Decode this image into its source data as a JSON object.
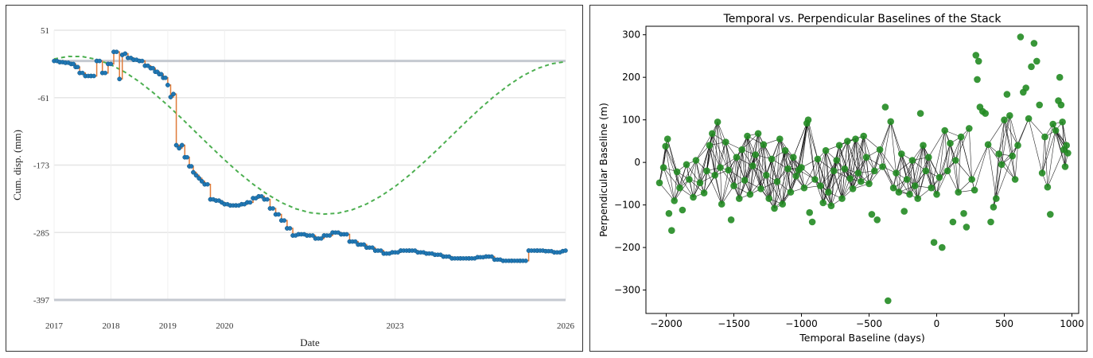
{
  "chart_data": [
    {
      "type": "line",
      "xlabel": "Date",
      "ylabel": "Cum. disp. (mm)",
      "ylim": [
        -397,
        51
      ],
      "yticks": [
        51,
        -61,
        -173,
        -285,
        -397
      ],
      "xticks": [
        {
          "label": "2017",
          "value": 2017.0
        },
        {
          "label": "2018",
          "value": 2018.0
        },
        {
          "label": "2019",
          "value": 2019.0
        },
        {
          "label": "2020",
          "value": 2020.0
        },
        {
          "label": "2023",
          "value": 2023.0
        },
        {
          "label": "2026",
          "value": 2026.0
        }
      ],
      "xlim": [
        2017.0,
        2026.0
      ],
      "reference_line": 0,
      "grid": true,
      "series": [
        {
          "color": "#1f77b4",
          "line_color": "#e07b39",
          "style": "line-with-markers",
          "x": [
            2017.0,
            2017.1,
            2017.2,
            2017.3,
            2017.38,
            2017.45,
            2017.55,
            2017.65,
            2017.75,
            2017.85,
            2017.95,
            2018.05,
            2018.15,
            2018.2,
            2018.25,
            2018.3,
            2018.4,
            2018.5,
            2018.6,
            2018.7,
            2018.78,
            2018.85,
            2018.92,
            2019.0,
            2019.05,
            2019.1,
            2019.15,
            2019.2,
            2019.25,
            2019.3,
            2019.38,
            2019.45,
            2019.5,
            2019.55,
            2019.6,
            2019.65,
            2019.75,
            2019.85,
            2019.95,
            2020.0,
            2020.1,
            2020.2,
            2020.3,
            2020.4,
            2020.5,
            2020.6,
            2020.7,
            2020.8,
            2020.9,
            2021.0,
            2021.1,
            2021.2,
            2021.3,
            2021.45,
            2021.6,
            2021.75,
            2021.9,
            2022.05,
            2022.2,
            2022.35,
            2022.5,
            2022.65,
            2022.8,
            2022.95,
            2023.1,
            2023.25,
            2023.4,
            2023.55,
            2023.7,
            2023.85,
            2024.0,
            2024.15,
            2024.3,
            2024.45,
            2024.6,
            2024.75,
            2024.9,
            2025.05,
            2025.2,
            2025.35,
            2025.5,
            2025.65,
            2025.8,
            2025.95,
            2026.0
          ],
          "y": [
            0,
            -2,
            -3,
            -5,
            -10,
            -20,
            -25,
            -25,
            0,
            -20,
            -5,
            15,
            -30,
            10,
            12,
            5,
            2,
            0,
            -8,
            -12,
            -18,
            -22,
            -28,
            -40,
            -60,
            -55,
            -140,
            -145,
            -140,
            -160,
            -175,
            -185,
            -190,
            -195,
            -200,
            -205,
            -230,
            -232,
            -235,
            -238,
            -240,
            -240,
            -238,
            -235,
            -228,
            -225,
            -230,
            -245,
            -255,
            -265,
            -278,
            -290,
            -288,
            -290,
            -295,
            -290,
            -285,
            -288,
            -300,
            -305,
            -310,
            -315,
            -320,
            -318,
            -315,
            -315,
            -318,
            -320,
            -322,
            -325,
            -328,
            -328,
            -328,
            -326,
            -325,
            -330,
            -332,
            -332,
            -332,
            -315,
            -315,
            -316,
            -318,
            -316,
            -315
          ]
        },
        {
          "color": "#4caf50",
          "style": "dashed",
          "fit": "sine",
          "x": [
            2017.0,
            2017.25,
            2017.5,
            2017.75,
            2018.0,
            2018.25,
            2018.5,
            2018.75,
            2019.0,
            2019.25,
            2019.5,
            2019.75,
            2020.0,
            2020.25,
            2020.5,
            2020.75,
            2021.0,
            2021.25,
            2021.5,
            2021.75,
            2022.0,
            2022.25,
            2022.5,
            2022.75,
            2023.0,
            2023.25,
            2023.5,
            2023.75,
            2024.0,
            2024.25,
            2024.5,
            2024.75,
            2025.0,
            2025.25,
            2025.5,
            2025.75,
            2026.0
          ],
          "y": [
            3.3,
            7.5,
            7.3,
            2.5,
            -6.3,
            -18.8,
            -34.6,
            -53.1,
            -73.8,
            -96.0,
            -118.9,
            -141.9,
            -164.3,
            -185.5,
            -204.7,
            -221.5,
            -235.2,
            -245.5,
            -252.0,
            -254.4,
            -252.8,
            -247.1,
            -237.6,
            -224.6,
            -208.5,
            -189.8,
            -168.9,
            -146.7,
            -123.8,
            -100.9,
            -78.8,
            -58.3,
            -40.0,
            -24.6,
            -12.7,
            -4.8,
            -1.2
          ]
        }
      ]
    },
    {
      "type": "scatter",
      "title": "Temporal vs. Perpendicular Baselines of the Stack",
      "xlabel": "Temporal Baseline (days)",
      "ylabel": "Perpendicular Baseline (m)",
      "xlim": [
        -2150,
        1050
      ],
      "ylim": [
        -355,
        320
      ],
      "xticks": [
        -2000,
        -1500,
        -1000,
        -500,
        0,
        500,
        1000
      ],
      "yticks": [
        -300,
        -200,
        -100,
        0,
        100,
        200,
        300
      ],
      "xtick_labels": [
        "−2000",
        "−1500",
        "−1000",
        "−500",
        "0",
        "500",
        "1000"
      ],
      "ytick_labels": [
        "−300",
        "−200",
        "−100",
        "0",
        "100",
        "200",
        "300"
      ],
      "point_color": "#228b22",
      "edge_color": "#000000",
      "grid": false,
      "points": [
        [
          -2050,
          -48
        ],
        [
          -2020,
          -12
        ],
        [
          -2005,
          38
        ],
        [
          -1990,
          55
        ],
        [
          -1980,
          -120
        ],
        [
          -1960,
          -160
        ],
        [
          -1940,
          -90
        ],
        [
          -1920,
          -22
        ],
        [
          -1900,
          -60
        ],
        [
          -1880,
          -112
        ],
        [
          -1850,
          -5
        ],
        [
          -1830,
          -40
        ],
        [
          -1800,
          -82
        ],
        [
          -1780,
          5
        ],
        [
          -1750,
          -48
        ],
        [
          -1720,
          -72
        ],
        [
          -1700,
          -20
        ],
        [
          -1680,
          40
        ],
        [
          -1660,
          68
        ],
        [
          -1640,
          -30
        ],
        [
          -1620,
          95
        ],
        [
          -1600,
          -12
        ],
        [
          -1590,
          -98
        ],
        [
          -1560,
          48
        ],
        [
          -1540,
          -18
        ],
        [
          -1520,
          -135
        ],
        [
          -1500,
          -55
        ],
        [
          -1480,
          12
        ],
        [
          -1460,
          -85
        ],
        [
          -1440,
          30
        ],
        [
          -1420,
          -42
        ],
        [
          -1400,
          62
        ],
        [
          -1380,
          -75
        ],
        [
          -1360,
          -8
        ],
        [
          -1340,
          18
        ],
        [
          -1320,
          68
        ],
        [
          -1300,
          -62
        ],
        [
          -1280,
          42
        ],
        [
          -1260,
          -30
        ],
        [
          -1240,
          -85
        ],
        [
          -1220,
          8
        ],
        [
          -1200,
          -108
        ],
        [
          -1180,
          -45
        ],
        [
          -1160,
          55
        ],
        [
          -1140,
          -98
        ],
        [
          -1120,
          28
        ],
        [
          -1100,
          -15
        ],
        [
          -1080,
          -70
        ],
        [
          -1060,
          12
        ],
        [
          -1040,
          -32
        ],
        [
          -1020,
          -18
        ],
        [
          -1000,
          -12
        ],
        [
          -980,
          -60
        ],
        [
          -960,
          92
        ],
        [
          -950,
          100
        ],
        [
          -940,
          -118
        ],
        [
          -920,
          -140
        ],
        [
          -900,
          -40
        ],
        [
          -880,
          8
        ],
        [
          -860,
          -55
        ],
        [
          -840,
          -95
        ],
        [
          -820,
          28
        ],
        [
          -800,
          -70
        ],
        [
          -780,
          -102
        ],
        [
          -760,
          -20
        ],
        [
          -740,
          5
        ],
        [
          -720,
          40
        ],
        [
          -700,
          -85
        ],
        [
          -680,
          -15
        ],
        [
          -660,
          50
        ],
        [
          -640,
          -38
        ],
        [
          -620,
          -62
        ],
        [
          -600,
          55
        ],
        [
          -580,
          -25
        ],
        [
          -560,
          -45
        ],
        [
          -540,
          62
        ],
        [
          -520,
          12
        ],
        [
          -500,
          -50
        ],
        [
          -480,
          -122
        ],
        [
          -460,
          -20
        ],
        [
          -440,
          -135
        ],
        [
          -420,
          30
        ],
        [
          -400,
          -10
        ],
        [
          -380,
          130
        ],
        [
          -360,
          -325
        ],
        [
          -340,
          96
        ],
        [
          -320,
          -60
        ],
        [
          -300,
          -25
        ],
        [
          -280,
          -70
        ],
        [
          -260,
          20
        ],
        [
          -240,
          -115
        ],
        [
          -220,
          -40
        ],
        [
          -200,
          -75
        ],
        [
          -180,
          5
        ],
        [
          -160,
          -55
        ],
        [
          -140,
          -85
        ],
        [
          -120,
          115
        ],
        [
          -100,
          40
        ],
        [
          -80,
          -20
        ],
        [
          -60,
          12
        ],
        [
          -40,
          -60
        ],
        [
          -20,
          -188
        ],
        [
          0,
          -75
        ],
        [
          20,
          -35
        ],
        [
          40,
          -200
        ],
        [
          60,
          75
        ],
        [
          80,
          -20
        ],
        [
          100,
          45
        ],
        [
          120,
          -140
        ],
        [
          140,
          5
        ],
        [
          160,
          -70
        ],
        [
          180,
          60
        ],
        [
          200,
          -120
        ],
        [
          220,
          -152
        ],
        [
          240,
          80
        ],
        [
          260,
          -40
        ],
        [
          280,
          -65
        ],
        [
          290,
          252
        ],
        [
          300,
          195
        ],
        [
          310,
          238
        ],
        [
          320,
          130
        ],
        [
          340,
          120
        ],
        [
          360,
          115
        ],
        [
          380,
          42
        ],
        [
          400,
          -140
        ],
        [
          420,
          -105
        ],
        [
          440,
          -85
        ],
        [
          460,
          20
        ],
        [
          480,
          -5
        ],
        [
          500,
          100
        ],
        [
          520,
          160
        ],
        [
          540,
          110
        ],
        [
          560,
          15
        ],
        [
          580,
          -40
        ],
        [
          600,
          40
        ],
        [
          620,
          295
        ],
        [
          640,
          165
        ],
        [
          660,
          175
        ],
        [
          680,
          103
        ],
        [
          700,
          225
        ],
        [
          720,
          280
        ],
        [
          740,
          238
        ],
        [
          760,
          135
        ],
        [
          780,
          -25
        ],
        [
          800,
          60
        ],
        [
          820,
          -58
        ],
        [
          840,
          -122
        ],
        [
          860,
          90
        ],
        [
          880,
          75
        ],
        [
          900,
          145
        ],
        [
          910,
          200
        ],
        [
          920,
          135
        ],
        [
          930,
          95
        ],
        [
          940,
          30
        ],
        [
          950,
          -10
        ],
        [
          960,
          40
        ],
        [
          970,
          22
        ]
      ]
    }
  ]
}
